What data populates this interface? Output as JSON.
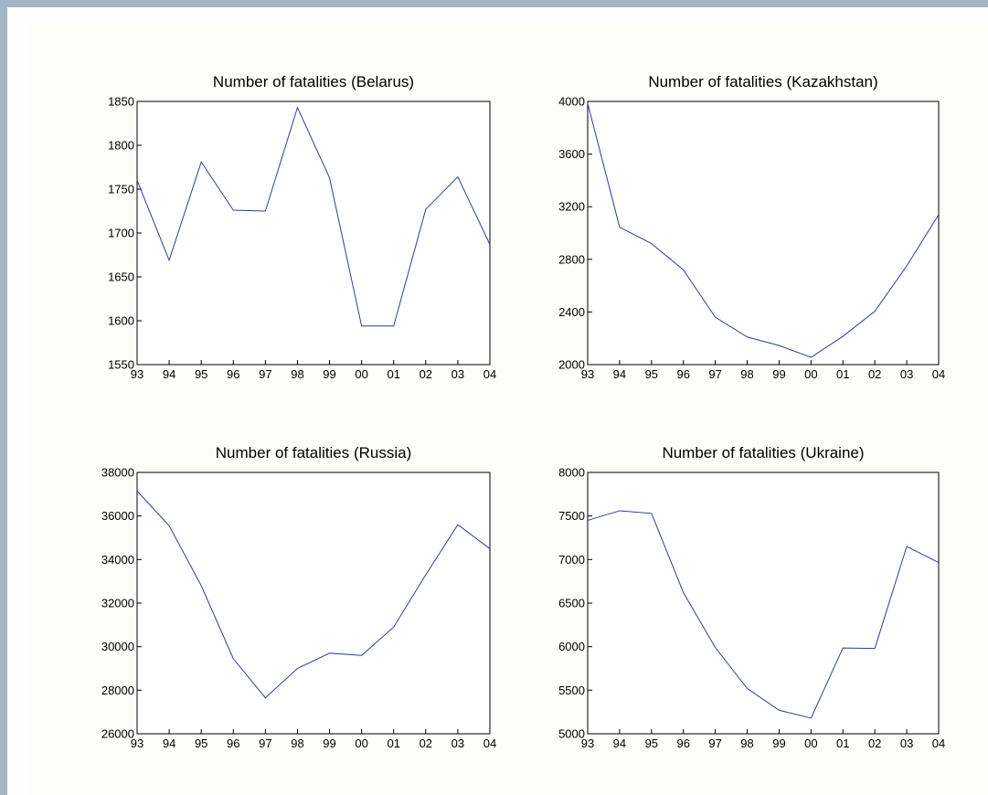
{
  "colors": {
    "line": "#2b3f8f",
    "frame": "#a3b6c8",
    "panel": "#fdfdf9"
  },
  "chart_data": [
    {
      "type": "line",
      "title": "Number of fatalities (Belarus)",
      "categories": [
        "93",
        "94",
        "95",
        "96",
        "97",
        "98",
        "99",
        "00",
        "01",
        "02",
        "03",
        "04"
      ],
      "values": [
        1760,
        1669,
        1781,
        1726,
        1725,
        1843,
        1763,
        1594,
        1594,
        1727,
        1764,
        1687
      ],
      "ylim": [
        1550,
        1850
      ],
      "yticks": [
        1550,
        1600,
        1650,
        1700,
        1750,
        1800,
        1850
      ],
      "ytick_labels": [
        "1550",
        "1600",
        "1650",
        "1700",
        "1750",
        "1800",
        "1850"
      ],
      "grid": false
    },
    {
      "type": "line",
      "title": "Number of fatalities (Kazakhstan)",
      "categories": [
        "93",
        "94",
        "95",
        "96",
        "97",
        "98",
        "99",
        "00",
        "01",
        "02",
        "03",
        "04"
      ],
      "values": [
        3985,
        3045,
        2920,
        2720,
        2360,
        2210,
        2145,
        2055,
        2215,
        2405,
        2750,
        3140
      ],
      "ylim": [
        2000,
        4000
      ],
      "yticks": [
        2000,
        2400,
        2800,
        3200,
        3600,
        4000
      ],
      "ytick_labels": [
        "2000",
        "2400",
        "2800",
        "3200",
        "3600",
        "4000"
      ],
      "grid": false
    },
    {
      "type": "line",
      "title": "Number of fatalities (Russia)",
      "categories": [
        "93",
        "94",
        "95",
        "96",
        "97",
        "98",
        "99",
        "00",
        "01",
        "02",
        "03",
        "04"
      ],
      "values": [
        37150,
        35550,
        32800,
        29450,
        27650,
        29000,
        29700,
        29600,
        30900,
        33300,
        35600,
        34500
      ],
      "ylim": [
        26000,
        38000
      ],
      "yticks": [
        26000,
        28000,
        30000,
        32000,
        34000,
        36000,
        38000
      ],
      "ytick_labels": [
        "26000",
        "28000",
        "30000",
        "32000",
        "34000",
        "36000",
        "38000"
      ],
      "grid": false
    },
    {
      "type": "line",
      "title": "Number of fatalities (Ukraine)",
      "categories": [
        "93",
        "94",
        "95",
        "96",
        "97",
        "98",
        "99",
        "00",
        "01",
        "02",
        "03",
        "04"
      ],
      "values": [
        7450,
        7560,
        7530,
        6620,
        5990,
        5520,
        5270,
        5180,
        5985,
        5980,
        7150,
        6965
      ],
      "ylim": [
        5000,
        8000
      ],
      "yticks": [
        5000,
        5500,
        6000,
        6500,
        7000,
        7500,
        8000
      ],
      "ytick_labels": [
        "5000",
        "5500",
        "6000",
        "6500",
        "7000",
        "7500",
        "8000"
      ],
      "grid": false
    }
  ]
}
